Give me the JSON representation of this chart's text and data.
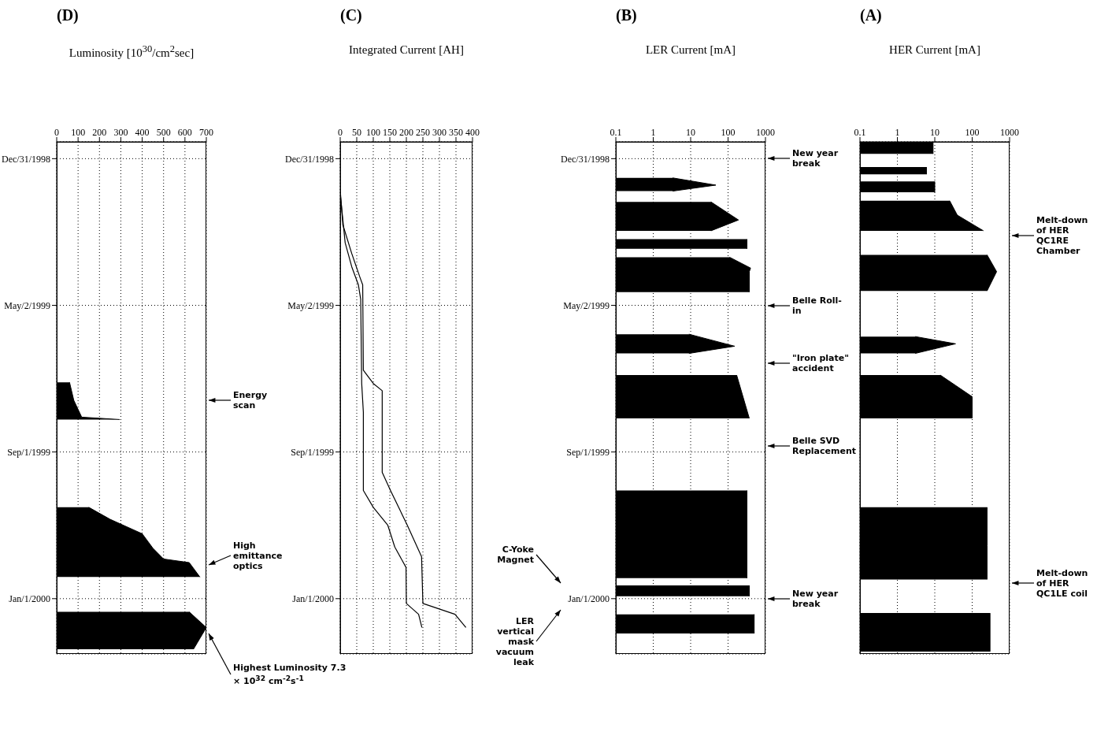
{
  "chart_data": [
    {
      "type": "area",
      "orientation": "horizontal",
      "title": "(A)",
      "xlabel": "HER Current [mA]",
      "log": "x",
      "grid": true,
      "tick_labels": "x",
      "ylim": [
        "2000-02-16",
        "1998-12-17"
      ],
      "yticks": [
        {
          "value": "1998-12-31",
          "label": null
        },
        {
          "value": "1999-05-02",
          "label": null
        },
        {
          "value": "1999-09-01",
          "label": null
        },
        {
          "value": "2000-01-01",
          "label": null
        }
      ],
      "xlim": [
        0.1,
        1000
      ],
      "xticks": [
        0.1,
        1,
        10,
        100,
        1000
      ],
      "series": [
        {
          "color": "#000000",
          "x": [
            "1998-12-17",
            "1998-12-27",
            "1999-01-02",
            "1999-01-07",
            "1999-01-13",
            "1999-01-16",
            "1999-01-19",
            "1999-01-28",
            "1999-01-31",
            "1999-02-04",
            "1999-02-16",
            "1999-03-01",
            "1999-03-05",
            "1999-03-21",
            "1999-04-04",
            "1999-04-20",
            "1999-04-25",
            "1999-05-28",
            "1999-06-03",
            "1999-06-11",
            "1999-06-20",
            "1999-06-29",
            "1999-07-17",
            "1999-08-04",
            "1999-08-10",
            "1999-10-17",
            "1999-11-18",
            "1999-12-16",
            "1999-12-22",
            "2000-01-13",
            "2000-02-14"
          ],
          "values": [
            9,
            9,
            null,
            6,
            6,
            null,
            10,
            10,
            null,
            25,
            40,
            200,
            null,
            250,
            450,
            250,
            null,
            3,
            36,
            3,
            null,
            14,
            100,
            100,
            null,
            250,
            250,
            250,
            null,
            300,
            300
          ]
        }
      ],
      "annotations": [
        "Melt-down of HER QC1RE Chamber",
        "Melt-down of HER QC1LE coil"
      ]
    },
    {
      "type": "area",
      "orientation": "horizontal",
      "title": "(B)",
      "xlabel": "LER Current [mA]",
      "log": "x",
      "grid": true,
      "ylim": [
        "2000-02-16",
        "1998-12-17"
      ],
      "yticks": [
        {
          "value": "1998-12-31",
          "label": "Dec/31/1998"
        },
        {
          "value": "1999-05-02",
          "label": "May/2/1999"
        },
        {
          "value": "1999-09-01",
          "label": "Sep/1/1999"
        },
        {
          "value": "2000-01-01",
          "label": "Jan/1/2000"
        }
      ],
      "xlim": [
        0.1,
        1000
      ],
      "xticks": [
        0.1,
        1,
        10,
        100,
        1000
      ],
      "series": [
        {
          "color": "#000000",
          "x": [
            "1999-01-16",
            "1999-01-22",
            "1999-01-27",
            "1999-01-31",
            "1999-02-05",
            "1999-02-20",
            "1999-03-01",
            "1999-03-04",
            "1999-03-08",
            "1999-03-16",
            "1999-03-19",
            "1999-03-23",
            "1999-04-01",
            "1999-04-04",
            "1999-04-21",
            "1999-05-01",
            "1999-05-26",
            "1999-06-05",
            "1999-06-11",
            "1999-06-20",
            "1999-06-29",
            "1999-08-04",
            "1999-08-15",
            "1999-10-03",
            "1999-12-15",
            "1999-12-18",
            "1999-12-21",
            "1999-12-30",
            "2000-01-06",
            "2000-01-14",
            "2000-01-30"
          ],
          "values": [
            3.3,
            47,
            3.3,
            null,
            35,
            190,
            35,
            null,
            320,
            320,
            null,
            110,
            400,
            370,
            370,
            null,
            9,
            150,
            9,
            null,
            170,
            370,
            null,
            320,
            320,
            null,
            370,
            370,
            null,
            500,
            500
          ]
        }
      ],
      "annotations": [
        "New year break",
        "Belle Roll-in",
        "\"Iron plate\" accident",
        "Belle SVD Replacement",
        "New year break",
        "C-Yoke Magnet",
        "LER vertical mask vacuum leak"
      ]
    },
    {
      "type": "line",
      "orientation": "horizontal",
      "title": "(C)",
      "xlabel": "Integrated Current [AH]",
      "grid": true,
      "marker": "none",
      "line_style": "solid",
      "ylim": [
        "2000-02-16",
        "1998-12-17"
      ],
      "yticks": [
        {
          "value": "1998-12-31",
          "label": "Dec/31/1998"
        },
        {
          "value": "1999-05-02",
          "label": "May/2/1999"
        },
        {
          "value": "1999-09-01",
          "label": "Sep/1/1999"
        },
        {
          "value": "2000-01-01",
          "label": "Jan/1/2000"
        }
      ],
      "xlim": [
        0,
        400
      ],
      "xticks": [
        0,
        50,
        100,
        150,
        200,
        250,
        300,
        350,
        400
      ],
      "series": [
        {
          "color": "#000000",
          "x": [
            "1999-01-26",
            "1999-02-24",
            "1999-03-20",
            "1999-04-09",
            "1999-04-15",
            "1999-06-25",
            "1999-07-06",
            "1999-07-12",
            "1999-09-18",
            "1999-10-03",
            "1999-11-01",
            "1999-11-27",
            "2000-01-05",
            "2000-01-14",
            "2000-01-25"
          ],
          "values": [
            0,
            8,
            35,
            60,
            68,
            70,
            100,
            127,
            127,
            152,
            203,
            246,
            250,
            347,
            380
          ]
        },
        {
          "color": "#000000",
          "x": [
            "1999-01-29",
            "1999-03-11",
            "1999-03-31",
            "1999-04-15",
            "1999-04-27",
            "1999-07-06",
            "1999-07-30",
            "1999-10-03",
            "1999-10-17",
            "1999-11-01",
            "1999-11-19",
            "1999-12-06",
            "2000-01-05",
            "2000-01-14",
            "2000-01-25"
          ],
          "values": [
            0,
            15,
            35,
            55,
            62,
            65,
            70,
            70,
            100,
            144,
            165,
            199,
            200,
            237,
            247
          ]
        }
      ]
    },
    {
      "type": "area",
      "orientation": "horizontal",
      "title": "(D)",
      "xlabel": "Luminosity [10$^{30}$/cm$^{2}$sec]",
      "grid": true,
      "ylim": [
        "2000-02-16",
        "1998-12-17"
      ],
      "yticks": [
        {
          "value": "1998-12-31",
          "label": "Dec/31/1998"
        },
        {
          "value": "1999-05-02",
          "label": "May/2/1999"
        },
        {
          "value": "1999-09-01",
          "label": "Sep/1/1999"
        },
        {
          "value": "2000-01-01",
          "label": "Jan/1/2000"
        }
      ],
      "xlim": [
        0,
        700
      ],
      "xticks": [
        0,
        100,
        200,
        300,
        400,
        500,
        600,
        700
      ],
      "series": [
        {
          "color": "#000000",
          "x": [
            "1999-07-05",
            "1999-07-20",
            "1999-08-03",
            "1999-08-05",
            "1999-08-06",
            "1999-10-17",
            "1999-10-27",
            "1999-11-08",
            "1999-11-20",
            "1999-11-29",
            "1999-12-02",
            "1999-12-14",
            "1999-12-16",
            "2000-01-12",
            "2000-01-25",
            "2000-02-12"
          ],
          "values": [
            60,
            80,
            117,
            295,
            null,
            150,
            250,
            400,
            450,
            500,
            620,
            670,
            null,
            620,
            700,
            640
          ]
        }
      ],
      "annotations": [
        "Energy scan",
        "High emittance optics",
        "Highest Luminosity 7.3 × 10$^{32}$ cm$^{-2}$s$^{-1}$"
      ]
    }
  ]
}
